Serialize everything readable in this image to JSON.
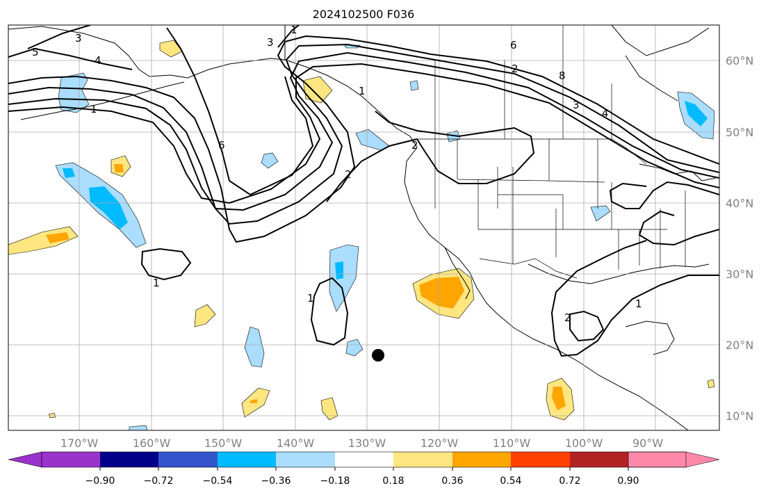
{
  "title": "2024102500 F036",
  "lon_labels": [
    "170°W",
    "160°W",
    "150°W",
    "140°W",
    "130°W",
    "120°W",
    "110°W",
    "100°W",
    "90°W"
  ],
  "lat_labels": [
    "60°N",
    "50°N",
    "40°N",
    "30°N",
    "20°N",
    "10°N"
  ],
  "colorbar": {
    "ticks": [
      "−0.90",
      "−0.72",
      "−0.54",
      "−0.36",
      "−0.18",
      "0.18",
      "0.36",
      "0.54",
      "0.72",
      "0.90"
    ],
    "colors": [
      "#9933cc",
      "#000088",
      "#3355cc",
      "#00bbff",
      "#aaddff",
      "#ffffff",
      "#ffe680",
      "#ffa500",
      "#ff4000",
      "#b22222",
      "#ff88aa"
    ]
  },
  "contour_labels": [
    "5",
    "3",
    "4",
    "1",
    "6",
    "2",
    "3",
    "1",
    "6",
    "2",
    "8",
    "3",
    "4",
    "2",
    "1",
    "1",
    "1",
    "2",
    "1"
  ],
  "marker": "storm-position-dot",
  "colors": {
    "positive_light": "#ffe680",
    "positive_mid": "#ffa500",
    "negative_light": "#aaddff",
    "negative_mid": "#00bbff"
  }
}
